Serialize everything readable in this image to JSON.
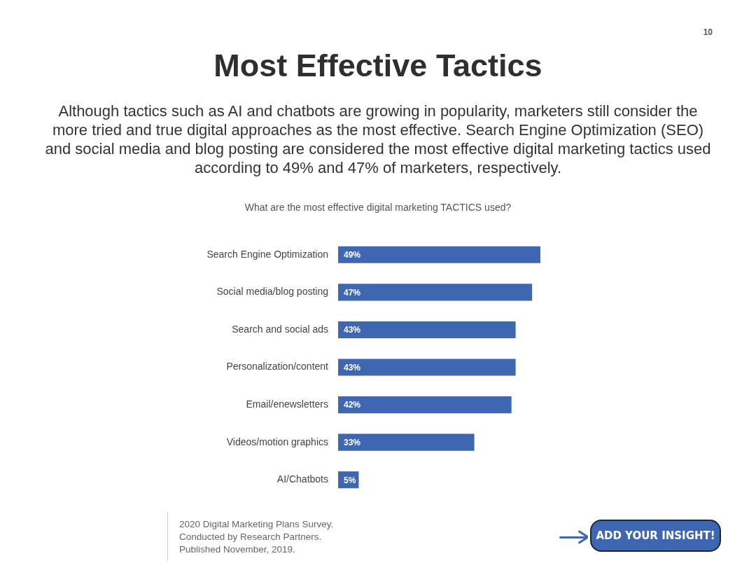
{
  "chart_data": {
    "type": "bar",
    "orientation": "horizontal",
    "title": "Most Effective Tactics",
    "subtitle": "Although tactics such as AI and chatbots are growing in popularity, marketers still consider the more tried and true digital approaches as the most effective. Search Engine Optimization (SEO) and social media and blog posting are considered the most effective digital marketing tactics used according to 49% and 47% of marketers, respectively.",
    "categories": [
      "Search Engine Optimization",
      "Social media/blog posting",
      "Search and social ads",
      "Personalization/content",
      "Email/enewsletters",
      "Videos/motion graphics",
      "AI/Chatbots"
    ],
    "values": [
      49,
      47,
      43,
      43,
      42,
      33,
      5
    ],
    "value_labels": [
      "49%",
      "47%",
      "43%",
      "43%",
      "42%",
      "33%",
      "5%"
    ],
    "color": "#3f67b1",
    "annotations": [
      "What are the most effective digital marketing TACTICS used?",
      "10",
      "2020 Digital Marketing Plans Survey.",
      "Conducted by Research Partners.",
      "Published November, 2019.",
      "ADD YOUR INSIGHT!"
    ]
  }
}
